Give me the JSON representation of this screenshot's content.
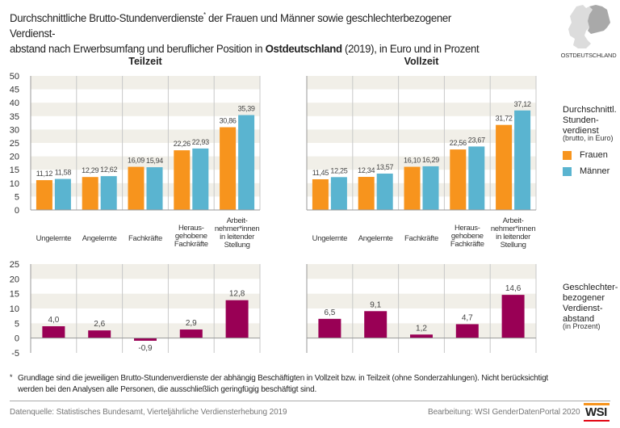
{
  "title": {
    "part1": "Durchschnittliche Brutto-Stundenverdienste",
    "footnote_mark": "*",
    "part2": " der Frauen und Männer sowie geschlechterbezogener Verdienst-",
    "part3": "abstand nach Erwerbsumfang und beruflicher Position in ",
    "region_bold": "Ostdeutschland",
    "part4": " (2019), in Euro und in Prozent"
  },
  "map": {
    "label": "OSTDEUTSCHLAND",
    "icon": "germany-map-icon"
  },
  "colors": {
    "frauen": "#f7941d",
    "maenner": "#5ab4d0",
    "gap": "#990055",
    "band": "#f1efe8",
    "grid": "#c8c8c8",
    "axis": "#999999"
  },
  "legend": {
    "earnings_title": [
      "Durchschnittl.",
      "Stunden-",
      "verdienst"
    ],
    "earnings_sub": "(brutto, in Euro)",
    "items": [
      {
        "label": "Frauen",
        "color_key": "frauen"
      },
      {
        "label": "Männer",
        "color_key": "maenner"
      }
    ],
    "gap_title": [
      "Geschlechter-",
      "bezogener",
      "Verdienst-",
      "abstand"
    ],
    "gap_sub": "(in Prozent)"
  },
  "chart_data": [
    {
      "type": "bar",
      "id": "earnings",
      "title": "Stundenverdienst",
      "panels": [
        "Teilzeit",
        "Vollzeit"
      ],
      "categories": [
        [
          "Ungelernte"
        ],
        [
          "Angelernte"
        ],
        [
          "Fachkräfte"
        ],
        [
          "Heraus-",
          "gehobene",
          "Fachkräfte"
        ],
        [
          "Arbeit-",
          "nehmer*innen",
          "in leitender",
          "Stellung"
        ]
      ],
      "ylim": [
        0,
        50
      ],
      "yticks": [
        0,
        5,
        10,
        15,
        20,
        25,
        30,
        35,
        40,
        45,
        50
      ],
      "grid": "alternating horizontal bands",
      "series": [
        {
          "name": "Frauen",
          "panel": "Teilzeit",
          "values": [
            11.12,
            12.29,
            16.09,
            22.26,
            30.86
          ],
          "labels": [
            "11,12",
            "12,29",
            "16,09",
            "22,26",
            "30,86"
          ]
        },
        {
          "name": "Männer",
          "panel": "Teilzeit",
          "values": [
            11.58,
            12.62,
            15.94,
            22.93,
            35.39
          ],
          "labels": [
            "11,58",
            "12,62",
            "15,94",
            "22,93",
            "35,39"
          ]
        },
        {
          "name": "Frauen",
          "panel": "Vollzeit",
          "values": [
            11.45,
            12.34,
            16.1,
            22.56,
            31.72
          ],
          "labels": [
            "11,45",
            "12,34",
            "16,10",
            "22,56",
            "31,72"
          ]
        },
        {
          "name": "Männer",
          "panel": "Vollzeit",
          "values": [
            12.25,
            13.57,
            16.29,
            23.67,
            37.12
          ],
          "labels": [
            "12,25",
            "13,57",
            "16,29",
            "23,67",
            "37,12"
          ]
        }
      ],
      "legend": "right"
    },
    {
      "type": "bar",
      "id": "gap",
      "title": "Geschlechterbezogener Verdienstabstand",
      "panels": [
        "Teilzeit",
        "Vollzeit"
      ],
      "ylim": [
        -5,
        25
      ],
      "yticks": [
        -5,
        0,
        5,
        10,
        15,
        20,
        25
      ],
      "series": [
        {
          "name": "Verdienstabstand",
          "panel": "Teilzeit",
          "values": [
            4.0,
            2.6,
            -0.9,
            2.9,
            12.8
          ],
          "labels": [
            "4,0",
            "2,6",
            "-0,9",
            "2,9",
            "12,8"
          ]
        },
        {
          "name": "Verdienstabstand",
          "panel": "Vollzeit",
          "values": [
            6.5,
            9.1,
            1.2,
            4.7,
            14.6
          ],
          "labels": [
            "6,5",
            "9,1",
            "1,2",
            "4,7",
            "14,6"
          ]
        }
      ],
      "legend": "right"
    }
  ],
  "footnote": {
    "mark": "*",
    "text": "Grundlage sind die jeweiligen Brutto-Stundenverdienste der abhängig Beschäftigten in Vollzeit bzw. in Teilzeit (ohne Sonderzahlungen). Nicht berücksichtigt werden bei den Analysen alle Personen, die ausschließlich geringfügig beschäftigt sind."
  },
  "source": "Datenquelle: Statistisches Bundesamt, Vierteljährliche Verdiensterhebung 2019",
  "credit": "Bearbeitung: WSI GenderDatenPortal 2020",
  "logo": "WSI"
}
